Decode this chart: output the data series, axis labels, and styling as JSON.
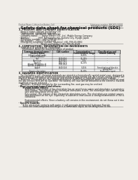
{
  "bg_color": "#f0ede8",
  "header_left": "Product Name: Lithium Ion Battery Cell",
  "header_right_line1": "Substance number: SBK-SDS-00010",
  "header_right_line2": "Established / Revision: Dec.7.2010",
  "title": "Safety data sheet for chemical products (SDS)",
  "s1_title": "1. PRODUCT AND COMPANY IDENTIFICATION",
  "s1_items": [
    "· Product name: Lithium Ion Battery Cell",
    "· Product code: Cylindrical-type cell",
    "   (IHR18650U, IHR18650L, IHR18650A)",
    "· Company name:      Sanyo Electric Co., Ltd., Mobile Energy Company",
    "· Address:            2001 Kamionaka-cho, Sumoto City, Hyogo, Japan",
    "· Telephone number:   +81-(799)-20-4111",
    "· Fax number:   +81-(799)-26-4128",
    "· Emergency telephone number (daytime) +81-799-20-3862",
    "                               (Night and holiday) +81-799-26-4128"
  ],
  "s2_title": "2. COMPOSITION / INFORMATION ON INGREDIENTS",
  "s2_line1": "· Substance or preparation: Preparation",
  "s2_line2": "  - Information about the chemical nature of product:",
  "tbl_cols": [
    9,
    66,
    105,
    145,
    192
  ],
  "tbl_hdr": [
    "Common chemical name /\nScience Name",
    "CAS number",
    "Concentration /\nConcentration range",
    "Classification and\nhazard labeling"
  ],
  "tbl_rows": [
    [
      "Lithium cobalt oxide\n(LiMnxCoyNizO2)",
      "-",
      "30-60%",
      "-"
    ],
    [
      "Iron",
      "7439-89-6",
      "15-25%",
      "-"
    ],
    [
      "Aluminum",
      "7429-90-5",
      "2-5%",
      "-"
    ],
    [
      "Graphite\n(Binder in graphite-1)\n(Al-film in graphite-1)",
      "7782-42-5\n7782-44-2",
      "10-25%",
      "-"
    ],
    [
      "Copper",
      "7440-50-8",
      "5-15%",
      "Sensitization of the skin\ngroup No.2"
    ],
    [
      "Organic electrolyte",
      "-",
      "10-20%",
      "Flammable liquid"
    ]
  ],
  "s3_title": "3. HAZARDS IDENTIFICATION",
  "s3_body": [
    "   For the battery cell, chemical materials are stored in a hermetically sealed metal case, designed to withstand",
    "temperature or pressure-related mechanical stress during normal use. As a result, during normal use, there is no",
    "physical danger of ignition or explosion and therefore danger of hazardous materials leakage.",
    "   However, if exposed to a fire, added mechanical shocks, decomposed, when electro-chemical reactions may occur,",
    "the gas release vent will be operated. The battery cell case will be breached at the extreme, hazardous",
    "materials may be released.",
    "   Moreover, if heated strongly by the surrounding fire, soot gas may be emitted."
  ],
  "s3_bullet1": "· Most important hazard and effects:",
  "s3_human": "      Human health effects:",
  "s3_sub": [
    "         Inhalation: The release of the electrolyte has an anesthesia action and stimulates a respiratory tract.",
    "         Skin contact: The release of the electrolyte stimulates a skin. The electrolyte skin contact causes a",
    "         sore and stimulation on the skin.",
    "         Eye contact: The release of the electrolyte stimulates eyes. The electrolyte eye contact causes a sore",
    "         and stimulation on the eye. Especially, a substance that causes a strong inflammation of the eye is",
    "         contained.",
    "",
    "         Environmental effects: Since a battery cell remains in the environment, do not throw out it into the",
    "         environment."
  ],
  "s3_bullet2": "· Specific hazards:",
  "s3_specific": [
    "      If the electrolyte contacts with water, it will generate detrimental hydrogen fluoride.",
    "      Since the lead-compound electrolyte is a flammable liquid, do not bring close to fire."
  ]
}
